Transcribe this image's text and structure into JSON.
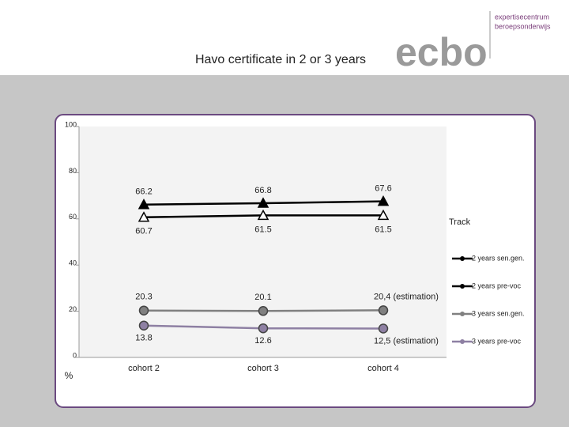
{
  "logo": {
    "name": "ecbo",
    "lines": [
      "expertisecentrum",
      "beroepsonderwijs"
    ]
  },
  "chart_data": {
    "type": "line",
    "title": "Havo certificate in 2 or 3 years",
    "y_label": "%",
    "categories": [
      "cohort 2",
      "cohort 3",
      "cohort 4"
    ],
    "ylim": [
      0,
      100
    ],
    "yticks": [
      0,
      20,
      40,
      60,
      80,
      100
    ],
    "grid": false,
    "legend_title": "Track",
    "legend_position": "right",
    "series": [
      {
        "name": "2 years sen.gen.",
        "color": "#000000",
        "marker": "triangle-filled",
        "values": [
          66.2,
          66.8,
          67.6
        ]
      },
      {
        "name": "2 years pre-voc",
        "color": "#000000",
        "marker": "triangle-open",
        "values": [
          60.7,
          61.5,
          61.5
        ]
      },
      {
        "name": "3 years sen.gen.",
        "color": "#808080",
        "marker": "circle",
        "values": [
          20.3,
          20.1,
          20.4
        ],
        "value_labels": [
          "20.3",
          "20.1",
          "20,4 (estimation)"
        ]
      },
      {
        "name": "3 years pre-voc",
        "color": "#8e80a3",
        "marker": "circle",
        "values": [
          13.8,
          12.6,
          12.5
        ],
        "value_labels": [
          "13.8",
          "12.6",
          "12,5 (estimation)"
        ]
      }
    ]
  }
}
